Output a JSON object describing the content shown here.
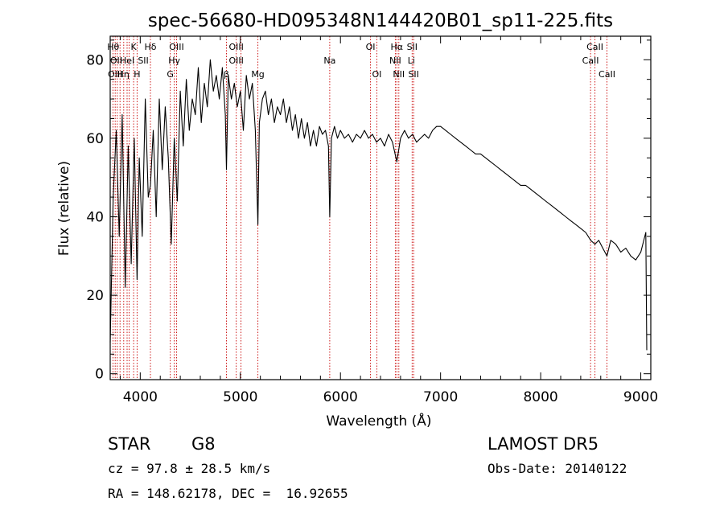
{
  "chart_data": {
    "type": "line",
    "title": "spec-56680-HD095348N144420B01_sp11-225.fits",
    "xlabel": "Wavelength (Å)",
    "ylabel": "Flux (relative)",
    "xlim": [
      3700,
      9100
    ],
    "ylim": [
      -1.5,
      86
    ],
    "xticks": [
      4000,
      5000,
      6000,
      7000,
      8000,
      9000
    ],
    "yticks": [
      0,
      20,
      40,
      60,
      80
    ],
    "grid": false,
    "series": [
      {
        "x": [
          3700,
          3730,
          3760,
          3790,
          3820,
          3850,
          3880,
          3910,
          3940,
          3968,
          3990,
          4020,
          4050,
          4080,
          4102,
          4130,
          4160,
          4190,
          4220,
          4250,
          4280,
          4310,
          4340,
          4370,
          4400,
          4430,
          4460,
          4490,
          4520,
          4550,
          4580,
          4610,
          4640,
          4670,
          4700,
          4730,
          4760,
          4790,
          4820,
          4850,
          4861,
          4880,
          4910,
          4940,
          4970,
          5000,
          5030,
          5060,
          5090,
          5120,
          5150,
          5175,
          5190,
          5220,
          5250,
          5280,
          5310,
          5340,
          5370,
          5400,
          5430,
          5460,
          5490,
          5520,
          5550,
          5580,
          5610,
          5640,
          5670,
          5700,
          5730,
          5760,
          5790,
          5820,
          5850,
          5880,
          5893,
          5910,
          5940,
          5970,
          6000,
          6040,
          6080,
          6120,
          6160,
          6200,
          6240,
          6280,
          6320,
          6360,
          6400,
          6440,
          6480,
          6520,
          6563,
          6600,
          6640,
          6680,
          6720,
          6760,
          6800,
          6840,
          6880,
          6920,
          6960,
          7000,
          7050,
          7100,
          7150,
          7200,
          7250,
          7300,
          7350,
          7400,
          7450,
          7500,
          7550,
          7600,
          7650,
          7700,
          7750,
          7800,
          7850,
          7900,
          7950,
          8000,
          8050,
          8100,
          8150,
          8200,
          8250,
          8300,
          8350,
          8400,
          8450,
          8500,
          8542,
          8580,
          8620,
          8662,
          8700,
          8750,
          8800,
          8850,
          8900,
          8950,
          9000,
          9030,
          9050,
          9060
        ],
        "y": [
          8,
          45,
          62,
          35,
          66,
          22,
          58,
          28,
          60,
          24,
          55,
          35,
          70,
          45,
          48,
          62,
          40,
          70,
          52,
          68,
          55,
          33,
          60,
          44,
          72,
          58,
          75,
          62,
          70,
          66,
          78,
          64,
          74,
          68,
          80,
          72,
          76,
          70,
          78,
          66,
          52,
          76,
          70,
          74,
          68,
          72,
          62,
          76,
          70,
          74,
          62,
          38,
          64,
          70,
          72,
          66,
          70,
          64,
          68,
          66,
          70,
          64,
          68,
          62,
          66,
          60,
          65,
          60,
          64,
          58,
          62,
          58,
          63,
          61,
          62,
          58,
          40,
          60,
          63,
          60,
          62,
          60,
          61,
          59,
          61,
          60,
          62,
          60,
          61,
          59,
          60,
          58,
          61,
          59,
          54,
          60,
          62,
          60,
          61,
          59,
          60,
          61,
          60,
          62,
          63,
          63,
          62,
          61,
          60,
          59,
          58,
          57,
          56,
          56,
          55,
          54,
          53,
          52,
          51,
          50,
          49,
          48,
          48,
          47,
          46,
          45,
          44,
          43,
          42,
          41,
          40,
          39,
          38,
          37,
          36,
          34,
          33,
          34,
          32,
          30,
          34,
          33,
          31,
          32,
          30,
          29,
          31,
          34,
          36,
          6
        ]
      }
    ],
    "line_labels": [
      {
        "x": 3730,
        "row": 1,
        "text": "Hθ"
      },
      {
        "x": 3760,
        "row": 2,
        "text": "OII"
      },
      {
        "x": 3750,
        "row": 3,
        "text": "OIII"
      },
      {
        "x": 3830,
        "row": 3,
        "text": "Hη"
      },
      {
        "x": 3870,
        "row": 2,
        "text": "HeI"
      },
      {
        "x": 3934,
        "row": 1,
        "text": "K"
      },
      {
        "x": 3968,
        "row": 3,
        "text": "H"
      },
      {
        "x": 4030,
        "row": 2,
        "text": "SII"
      },
      {
        "x": 4102,
        "row": 1,
        "text": "Hδ"
      },
      {
        "x": 4300,
        "row": 3,
        "text": "G"
      },
      {
        "x": 4340,
        "row": 2,
        "text": "Hγ"
      },
      {
        "x": 4363,
        "row": 1,
        "text": "OIII"
      },
      {
        "x": 4861,
        "row": 3,
        "text": "β"
      },
      {
        "x": 4959,
        "row": 1,
        "text": "OIII"
      },
      {
        "x": 4959,
        "row": 2,
        "text": "OIII"
      },
      {
        "x": 5175,
        "row": 3,
        "text": "Mg"
      },
      {
        "x": 5893,
        "row": 2,
        "text": "Na"
      },
      {
        "x": 6300,
        "row": 1,
        "text": "OI"
      },
      {
        "x": 6363,
        "row": 3,
        "text": "OI"
      },
      {
        "x": 6563,
        "row": 1,
        "text": "Hα"
      },
      {
        "x": 6548,
        "row": 2,
        "text": "NII"
      },
      {
        "x": 6583,
        "row": 3,
        "text": "NII"
      },
      {
        "x": 6716,
        "row": 1,
        "text": "SII"
      },
      {
        "x": 6708,
        "row": 2,
        "text": "Li"
      },
      {
        "x": 6731,
        "row": 3,
        "text": "SII"
      },
      {
        "x": 8542,
        "row": 1,
        "text": "CaII"
      },
      {
        "x": 8498,
        "row": 2,
        "text": "CaII"
      },
      {
        "x": 8662,
        "row": 3,
        "text": "CaII"
      }
    ],
    "line_markers": [
      3727,
      3750,
      3771,
      3798,
      3835,
      3869,
      3889,
      3934,
      3968,
      4102,
      4300,
      4340,
      4363,
      4861,
      4959,
      5007,
      5175,
      5893,
      6300,
      6363,
      6548,
      6563,
      6583,
      6716,
      6731,
      8498,
      8542,
      8662
    ],
    "line_color": "#000000",
    "marker_color": "#c80000"
  },
  "info": {
    "object_class": "STAR",
    "subclass": "G8",
    "survey": "LAMOST DR5",
    "velocity": "cz = 97.8 ± 28.5 km/s",
    "obs_date": "Obs-Date: 20140122",
    "coords": "RA = 148.62178, DEC =  16.92655"
  }
}
